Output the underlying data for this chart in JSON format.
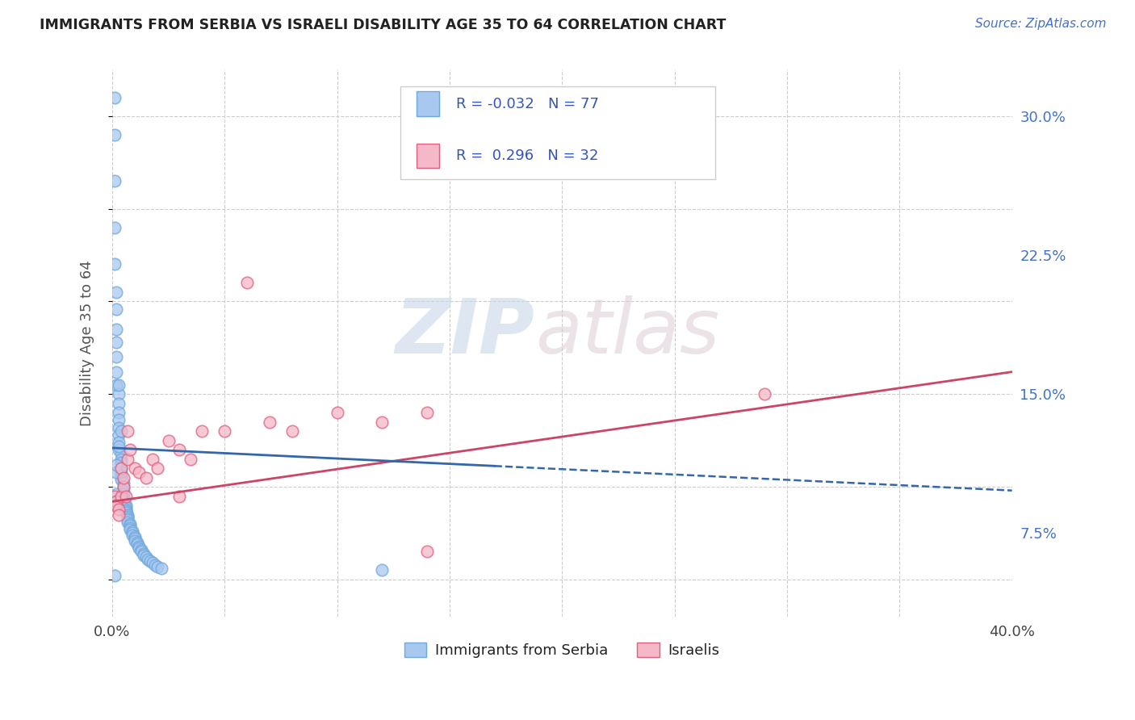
{
  "title": "IMMIGRANTS FROM SERBIA VS ISRAELI DISABILITY AGE 35 TO 64 CORRELATION CHART",
  "source_text": "Source: ZipAtlas.com",
  "ylabel": "Disability Age 35 to 64",
  "xlim": [
    0.0,
    0.4
  ],
  "ylim": [
    0.03,
    0.325
  ],
  "xticks": [
    0.0,
    0.05,
    0.1,
    0.15,
    0.2,
    0.25,
    0.3,
    0.35,
    0.4
  ],
  "xticklabels": [
    "0.0%",
    "",
    "",
    "",
    "",
    "",
    "",
    "",
    "40.0%"
  ],
  "yticks_right": [
    0.075,
    0.15,
    0.225,
    0.3
  ],
  "yticklabels_right": [
    "7.5%",
    "15.0%",
    "22.5%",
    "30.0%"
  ],
  "serbia_color": "#6fa8dc",
  "serbia_fill": "#a8c8f0",
  "israel_color": "#e06080",
  "israel_fill": "#f4b8c8",
  "serbia_line_color": "#3366aa",
  "israel_line_color": "#cc4466",
  "watermark_zip": "ZIP",
  "watermark_atlas": "atlas",
  "serbia_x": [
    0.001,
    0.001,
    0.001,
    0.001,
    0.001,
    0.002,
    0.002,
    0.002,
    0.002,
    0.002,
    0.002,
    0.002,
    0.003,
    0.003,
    0.003,
    0.003,
    0.003,
    0.003,
    0.003,
    0.003,
    0.004,
    0.004,
    0.004,
    0.004,
    0.004,
    0.004,
    0.004,
    0.005,
    0.005,
    0.005,
    0.005,
    0.005,
    0.005,
    0.006,
    0.006,
    0.006,
    0.006,
    0.006,
    0.007,
    0.007,
    0.007,
    0.007,
    0.007,
    0.008,
    0.008,
    0.008,
    0.008,
    0.009,
    0.009,
    0.009,
    0.01,
    0.01,
    0.01,
    0.011,
    0.011,
    0.012,
    0.012,
    0.013,
    0.013,
    0.014,
    0.014,
    0.015,
    0.016,
    0.017,
    0.018,
    0.019,
    0.02,
    0.022,
    0.003,
    0.004,
    0.003,
    0.002,
    0.002,
    0.002,
    0.002,
    0.001,
    0.12
  ],
  "serbia_y": [
    0.31,
    0.29,
    0.265,
    0.24,
    0.22,
    0.205,
    0.196,
    0.185,
    0.178,
    0.17,
    0.162,
    0.155,
    0.15,
    0.145,
    0.14,
    0.136,
    0.132,
    0.128,
    0.124,
    0.12,
    0.118,
    0.115,
    0.113,
    0.11,
    0.108,
    0.106,
    0.104,
    0.102,
    0.1,
    0.098,
    0.096,
    0.094,
    0.092,
    0.09,
    0.089,
    0.088,
    0.087,
    0.086,
    0.085,
    0.084,
    0.083,
    0.082,
    0.081,
    0.08,
    0.079,
    0.078,
    0.077,
    0.076,
    0.075,
    0.074,
    0.073,
    0.072,
    0.071,
    0.07,
    0.069,
    0.068,
    0.067,
    0.066,
    0.065,
    0.064,
    0.063,
    0.062,
    0.061,
    0.06,
    0.059,
    0.058,
    0.057,
    0.056,
    0.122,
    0.13,
    0.155,
    0.108,
    0.096,
    0.092,
    0.112,
    0.052,
    0.055
  ],
  "israel_x": [
    0.001,
    0.002,
    0.002,
    0.003,
    0.003,
    0.004,
    0.004,
    0.005,
    0.005,
    0.006,
    0.007,
    0.007,
    0.008,
    0.01,
    0.012,
    0.015,
    0.018,
    0.02,
    0.025,
    0.03,
    0.03,
    0.035,
    0.04,
    0.05,
    0.06,
    0.07,
    0.08,
    0.1,
    0.12,
    0.14,
    0.14,
    0.29
  ],
  "israel_y": [
    0.095,
    0.092,
    0.09,
    0.088,
    0.085,
    0.11,
    0.095,
    0.1,
    0.105,
    0.095,
    0.13,
    0.115,
    0.12,
    0.11,
    0.108,
    0.105,
    0.115,
    0.11,
    0.125,
    0.12,
    0.095,
    0.115,
    0.13,
    0.13,
    0.21,
    0.135,
    0.13,
    0.14,
    0.135,
    0.14,
    0.065,
    0.15
  ],
  "serbia_trend_x": [
    0.0,
    0.4
  ],
  "serbia_trend_y": [
    0.121,
    0.098
  ],
  "israel_trend_x": [
    0.0,
    0.4
  ],
  "israel_trend_y": [
    0.092,
    0.162
  ]
}
